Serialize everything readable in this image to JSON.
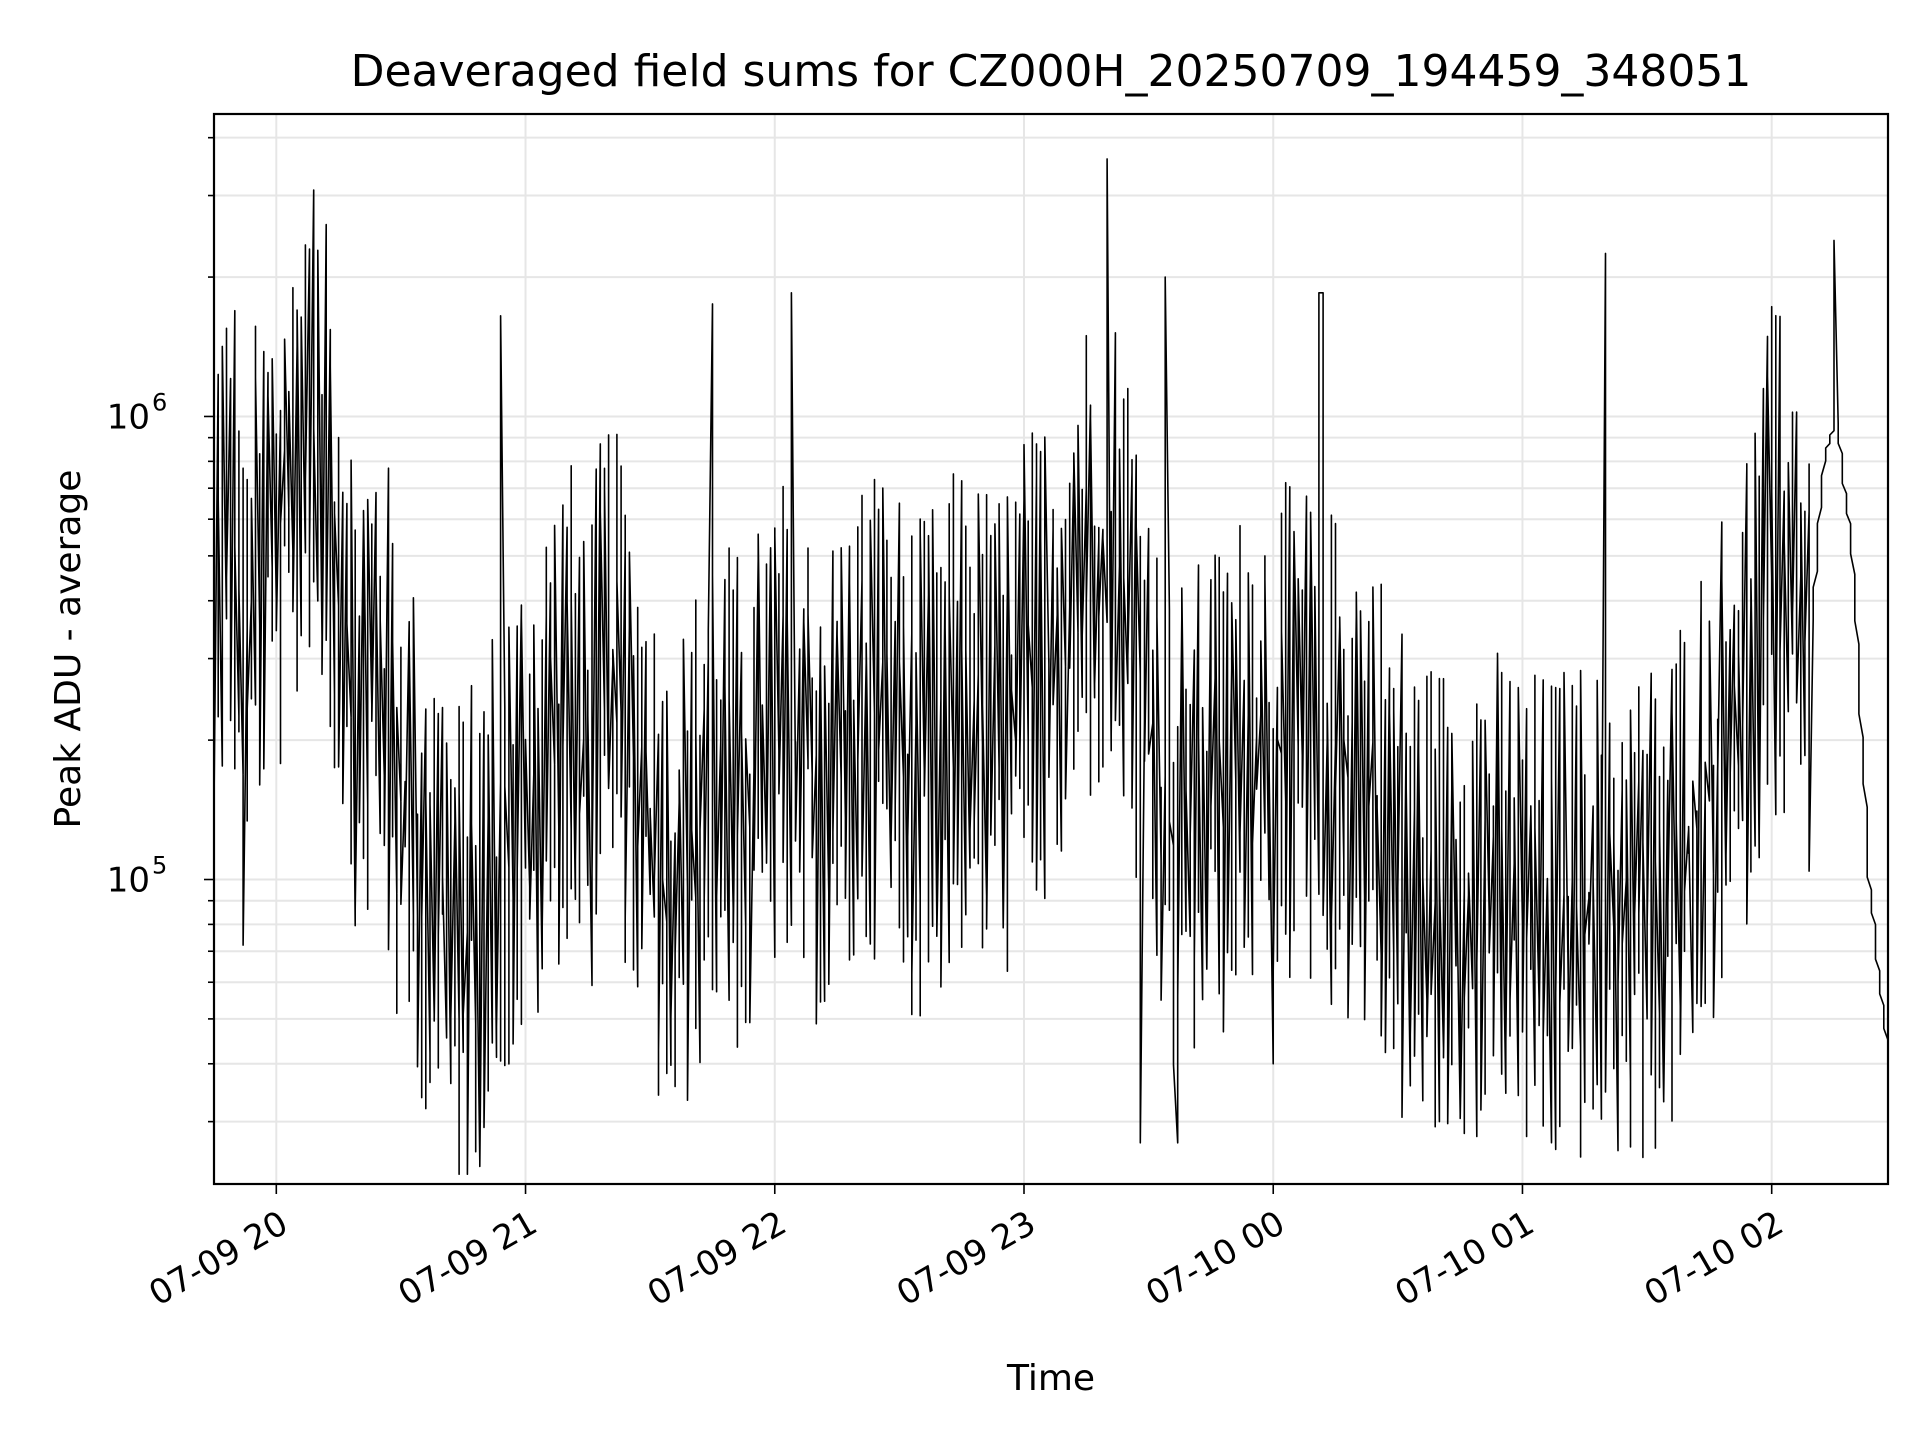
{
  "chart_data": {
    "type": "line",
    "title": "Deaveraged field sums for CZ000H_20250709_194459_348051",
    "xlabel": "Time",
    "ylabel": "Peak ADU - average",
    "x_range": [
      "2025-07-09T19:45",
      "2025-07-10T02:28"
    ],
    "y_scale": "log",
    "ylim": [
      22000,
      4500000
    ],
    "grid": true,
    "legend": "none",
    "line_color": "#000000",
    "y_major_ticks": [
      {
        "value": 100000,
        "base": "10",
        "exp": "5"
      },
      {
        "value": 1000000,
        "base": "10",
        "exp": "6"
      }
    ],
    "x_ticks": [
      {
        "value": "2025-07-09T20:00",
        "label": "07-09 20"
      },
      {
        "value": "2025-07-09T21:00",
        "label": "07-09 21"
      },
      {
        "value": "2025-07-09T22:00",
        "label": "07-09 22"
      },
      {
        "value": "2025-07-09T23:00",
        "label": "07-09 23"
      },
      {
        "value": "2025-07-10T00:00",
        "label": "07-10 00"
      },
      {
        "value": "2025-07-10T01:00",
        "label": "07-10 01"
      },
      {
        "value": "2025-07-10T02:00",
        "label": "07-10 02"
      }
    ],
    "series": [
      {
        "x": [
          "2025-07-09T19:45",
          "2025-07-09T19:50",
          "2025-07-09T19:53",
          "2025-07-09T19:55",
          "2025-07-09T20:00",
          "2025-07-09T20:05",
          "2025-07-09T20:08",
          "2025-07-09T20:15",
          "2025-07-09T20:20",
          "2025-07-09T20:25",
          "2025-07-09T20:30",
          "2025-07-09T20:35",
          "2025-07-09T20:40",
          "2025-07-09T20:45",
          "2025-07-09T20:50",
          "2025-07-09T20:55",
          "2025-07-09T21:00",
          "2025-07-09T21:05",
          "2025-07-09T21:10",
          "2025-07-09T21:15",
          "2025-07-09T21:20",
          "2025-07-09T21:25",
          "2025-07-09T21:30",
          "2025-07-09T21:35",
          "2025-07-09T21:40",
          "2025-07-09T21:45",
          "2025-07-09T21:50",
          "2025-07-09T21:55",
          "2025-07-09T22:00",
          "2025-07-09T22:05",
          "2025-07-09T22:10",
          "2025-07-09T22:15",
          "2025-07-09T22:20",
          "2025-07-09T22:25",
          "2025-07-09T22:30",
          "2025-07-09T22:35",
          "2025-07-09T22:40",
          "2025-07-09T22:45",
          "2025-07-09T22:50",
          "2025-07-09T22:55",
          "2025-07-09T23:00",
          "2025-07-09T23:05",
          "2025-07-09T23:10",
          "2025-07-09T23:15",
          "2025-07-09T23:20",
          "2025-07-09T23:25",
          "2025-07-09T23:30",
          "2025-07-09T23:35",
          "2025-07-09T23:40",
          "2025-07-09T23:45",
          "2025-07-09T23:50",
          "2025-07-09T23:55",
          "2025-07-10T00:00",
          "2025-07-10T00:05",
          "2025-07-10T00:10",
          "2025-07-10T00:15",
          "2025-07-10T00:20",
          "2025-07-10T00:25",
          "2025-07-10T00:30",
          "2025-07-10T00:35",
          "2025-07-10T00:40",
          "2025-07-10T00:45",
          "2025-07-10T00:50",
          "2025-07-10T00:55",
          "2025-07-10T01:00",
          "2025-07-10T01:05",
          "2025-07-10T01:10",
          "2025-07-10T01:15",
          "2025-07-10T01:20",
          "2025-07-10T01:25",
          "2025-07-10T01:30",
          "2025-07-10T01:35",
          "2025-07-10T01:40",
          "2025-07-10T01:45",
          "2025-07-10T01:50",
          "2025-07-10T01:55",
          "2025-07-10T02:00",
          "2025-07-10T02:05",
          "2025-07-10T02:10",
          "2025-07-10T02:13",
          "2025-07-10T02:16",
          "2025-07-10T02:20",
          "2025-07-10T02:24",
          "2025-07-10T02:28"
        ],
        "y": [
          500000,
          600000,
          200000,
          450000,
          550000,
          700000,
          1100000,
          550000,
          250000,
          300000,
          150000,
          120000,
          90000,
          70000,
          85000,
          120000,
          140000,
          180000,
          250000,
          180000,
          300000,
          220000,
          130000,
          90000,
          110000,
          180000,
          150000,
          140000,
          220000,
          200000,
          170000,
          160000,
          210000,
          240000,
          200000,
          170000,
          190000,
          230000,
          210000,
          200000,
          260000,
          280000,
          350000,
          480000,
          540000,
          420000,
          230000,
          120000,
          130000,
          150000,
          160000,
          200000,
          190000,
          210000,
          200000,
          180000,
          170000,
          150000,
          110000,
          90000,
          85000,
          90000,
          95000,
          90000,
          85000,
          80000,
          82000,
          85000,
          84000,
          83000,
          86000,
          88000,
          120000,
          150000,
          200000,
          280000,
          500000,
          450000,
          350000,
          800000,
          1000000,
          500000,
          100000,
          45000
        ]
      }
    ],
    "spikes": [
      {
        "x": "2025-07-09T20:08",
        "y": 2300000
      },
      {
        "x": "2025-07-09T20:55",
        "y": 1650000
      },
      {
        "x": "2025-07-09T21:45",
        "y": 1750000
      },
      {
        "x": "2025-07-09T22:05",
        "y": 1850000
      },
      {
        "x": "2025-07-09T23:21",
        "y": 3600000
      },
      {
        "x": "2025-07-09T23:35",
        "y": 2000000
      },
      {
        "x": "2025-07-10T00:12",
        "y": 1850000
      },
      {
        "x": "2025-07-10T01:20",
        "y": 2250000
      },
      {
        "x": "2025-07-10T02:16",
        "y": 2400000
      },
      {
        "x": "2025-07-09T23:29",
        "y": 27000
      },
      {
        "x": "2025-07-09T23:37",
        "y": 27000
      },
      {
        "x": "2025-07-10T00:00",
        "y": 40000
      },
      {
        "x": "2025-07-10T00:55",
        "y": 38000
      }
    ]
  }
}
